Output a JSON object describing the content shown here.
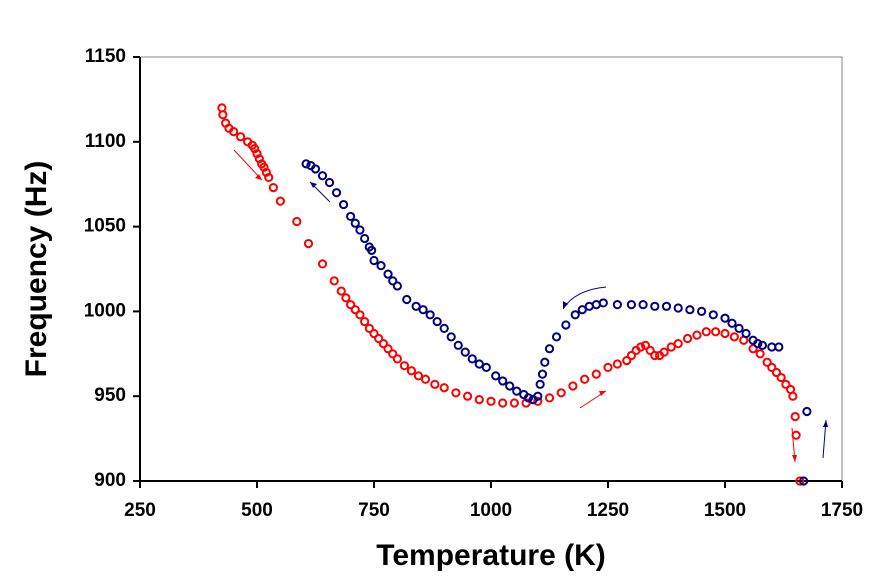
{
  "chart_data": {
    "type": "scatter",
    "x_label": "Temperature (K)",
    "y_label": "Frequency (Hz)",
    "xlim": [
      250,
      1750
    ],
    "xticks": [
      250,
      500,
      750,
      1000,
      1250,
      1500,
      1750
    ],
    "ylim": [
      900,
      1150
    ],
    "yticks": [
      900,
      950,
      1000,
      1050,
      1100,
      1150
    ],
    "series": [
      {
        "color": "#ff0000",
        "x": [
          425,
          427,
          433,
          440,
          450,
          465,
          480,
          490,
          495,
          500,
          505,
          510,
          515,
          520,
          525,
          535,
          550,
          585,
          610,
          640,
          665,
          680,
          690,
          700,
          710,
          720,
          730,
          740,
          750,
          760,
          770,
          780,
          790,
          800,
          815,
          830,
          845,
          860,
          880,
          900,
          925,
          950,
          975,
          1000,
          1025,
          1050,
          1075,
          1100,
          1125,
          1150,
          1175,
          1200,
          1225,
          1250,
          1270,
          1290,
          1300,
          1310,
          1320,
          1330,
          1340,
          1350,
          1360,
          1370,
          1385,
          1400,
          1420,
          1440,
          1460,
          1480,
          1500,
          1520,
          1540,
          1560,
          1575,
          1590,
          1600,
          1610,
          1620,
          1630,
          1640,
          1645,
          1650,
          1652,
          1660
        ],
        "values": [
          1120,
          1116,
          1111,
          1108,
          1106,
          1103,
          1100,
          1098,
          1096,
          1093,
          1090,
          1087,
          1085,
          1082,
          1079,
          1073,
          1065,
          1053,
          1040,
          1028,
          1018,
          1012,
          1008,
          1004,
          1001,
          998,
          994,
          990,
          987,
          984,
          981,
          978,
          975,
          972,
          968,
          965,
          962,
          960,
          957,
          955,
          952,
          950,
          948,
          947,
          946,
          946,
          946,
          947,
          949,
          952,
          956,
          960,
          963,
          967,
          969,
          971,
          974,
          977,
          979,
          980,
          977,
          974,
          974,
          976,
          979,
          981,
          984,
          986,
          988,
          988,
          987,
          985,
          983,
          978,
          975,
          970,
          967,
          964,
          961,
          957,
          954,
          950,
          938,
          927,
          900
        ]
      },
      {
        "color": "#000080",
        "x": [
          605,
          615,
          625,
          640,
          655,
          670,
          685,
          700,
          710,
          720,
          730,
          740,
          745,
          750,
          765,
          780,
          790,
          800,
          820,
          840,
          855,
          870,
          885,
          900,
          915,
          930,
          945,
          960,
          975,
          990,
          1010,
          1025,
          1040,
          1055,
          1070,
          1080,
          1090,
          1100,
          1105,
          1110,
          1115,
          1125,
          1140,
          1160,
          1180,
          1195,
          1210,
          1225,
          1240,
          1270,
          1300,
          1325,
          1350,
          1375,
          1400,
          1425,
          1450,
          1475,
          1500,
          1515,
          1530,
          1545,
          1560,
          1570,
          1580,
          1600,
          1615,
          1675,
          1668
        ],
        "values": [
          1087,
          1086,
          1084,
          1080,
          1076,
          1070,
          1063,
          1056,
          1052,
          1048,
          1043,
          1038,
          1036,
          1030,
          1027,
          1022,
          1018,
          1015,
          1007,
          1003,
          1001,
          998,
          994,
          990,
          985,
          980,
          976,
          972,
          969,
          967,
          962,
          959,
          956,
          953,
          951,
          949,
          948,
          950,
          957,
          963,
          970,
          978,
          985,
          992,
          998,
          1001,
          1003,
          1004,
          1005,
          1004,
          1004,
          1004,
          1003,
          1003,
          1002,
          1001,
          1000,
          998,
          996,
          993,
          990,
          987,
          983,
          981,
          980,
          979,
          979,
          941,
          900
        ]
      }
    ]
  }
}
